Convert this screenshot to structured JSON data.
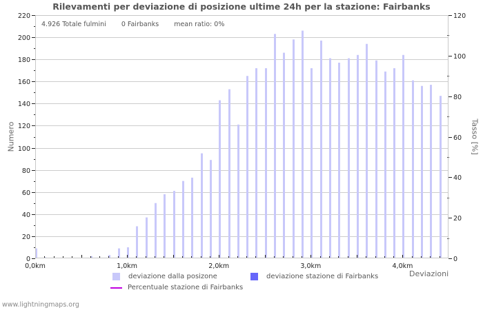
{
  "chart_data": {
    "type": "bar",
    "title": "Rilevamenti per deviazione di posizione ultime 24h per la stazione: Fairbanks",
    "info": {
      "total": "4.926 Totale fulmini",
      "station": "0 Fairbanks",
      "mean_ratio": "mean ratio: 0%"
    },
    "xlabel": "Deviazioni",
    "ylabel": "Numero",
    "ylabel_right": "Tasso [%]",
    "xlim": [
      0,
      4.5
    ],
    "ylim": [
      0,
      220
    ],
    "ylim_right": [
      0,
      120
    ],
    "x_tick_labels": [
      "0,0km",
      "1,0km",
      "2,0km",
      "3,0km",
      "4,0km"
    ],
    "x_tick_values": [
      0,
      1,
      2,
      3,
      4
    ],
    "y_ticks": [
      0,
      20,
      40,
      60,
      80,
      100,
      120,
      140,
      160,
      180,
      200,
      220
    ],
    "y_ticks_right": [
      0,
      20,
      40,
      60,
      80,
      100,
      120
    ],
    "grid": true,
    "bin_width_km": 0.1,
    "x": [
      0.0,
      0.1,
      0.2,
      0.3,
      0.4,
      0.5,
      0.6,
      0.7,
      0.8,
      0.9,
      1.0,
      1.1,
      1.2,
      1.3,
      1.4,
      1.5,
      1.6,
      1.7,
      1.8,
      1.9,
      2.0,
      2.1,
      2.2,
      2.3,
      2.4,
      2.5,
      2.6,
      2.7,
      2.8,
      2.9,
      3.0,
      3.1,
      3.2,
      3.3,
      3.4,
      3.5,
      3.6,
      3.7,
      3.8,
      3.9,
      4.0,
      4.1,
      4.2,
      4.3,
      4.4
    ],
    "series": [
      {
        "name": "deviazione dalla posizone",
        "color": "#c8c8fa",
        "type": "bar",
        "values": [
          9,
          1,
          0,
          0,
          0,
          0,
          2,
          0,
          3,
          9,
          10,
          29,
          37,
          50,
          58,
          61,
          70,
          73,
          95,
          89,
          143,
          153,
          121,
          165,
          172,
          172,
          203,
          186,
          198,
          206,
          172,
          197,
          181,
          177,
          181,
          184,
          194,
          179,
          169,
          172,
          184,
          161,
          156,
          157,
          147
        ]
      },
      {
        "name": "deviazione stazione di Fairbanks",
        "color": "#6666fa",
        "type": "bar",
        "values": [
          0,
          0,
          0,
          0,
          0,
          0,
          0,
          0,
          0,
          0,
          0,
          0,
          0,
          0,
          0,
          0,
          0,
          0,
          0,
          0,
          0,
          0,
          0,
          0,
          0,
          0,
          0,
          0,
          0,
          0,
          0,
          0,
          0,
          0,
          0,
          0,
          0,
          0,
          0,
          0,
          0,
          0,
          0,
          0,
          0
        ]
      },
      {
        "name": "Percentuale stazione di Fairbanks",
        "color": "#c000e0",
        "type": "line",
        "axis": "right",
        "values": []
      }
    ],
    "legend_position": "bottom"
  },
  "footer": "www.lightningmaps.org",
  "colors": {
    "grid": "#cccccc",
    "axis": "#c8c8c8"
  }
}
